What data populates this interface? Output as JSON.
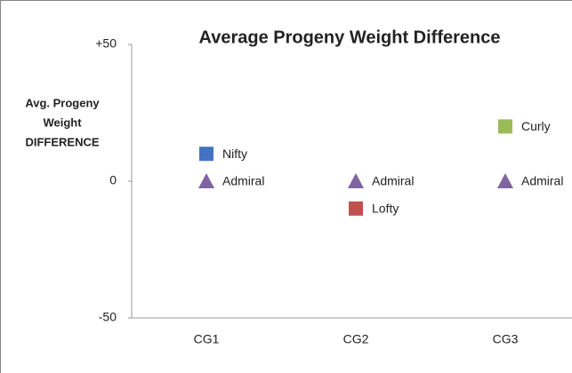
{
  "chart_data": {
    "type": "scatter",
    "title": "Average Progeny Weight Difference",
    "y_label": [
      "Avg. Progeny",
      "Weight",
      "DIFFERENCE"
    ],
    "categories": [
      "CG1",
      "CG2",
      "CG3"
    ],
    "ylim": [
      -50,
      50
    ],
    "yticks": [
      {
        "value": 50,
        "label": "+50"
      },
      0,
      -50
    ],
    "series": [
      {
        "name": "Nifty",
        "color": "#4472c4",
        "marker": "square",
        "values": [
          10,
          null,
          null
        ]
      },
      {
        "name": "Admiral",
        "color": "#8064a2",
        "marker": "triangle",
        "values": [
          0,
          0,
          0
        ]
      },
      {
        "name": "Lofty",
        "color": "#c0504d",
        "marker": "square",
        "values": [
          null,
          -10,
          null
        ]
      },
      {
        "name": "Curly",
        "color": "#9bbb59",
        "marker": "square",
        "values": [
          null,
          null,
          20
        ]
      }
    ]
  }
}
